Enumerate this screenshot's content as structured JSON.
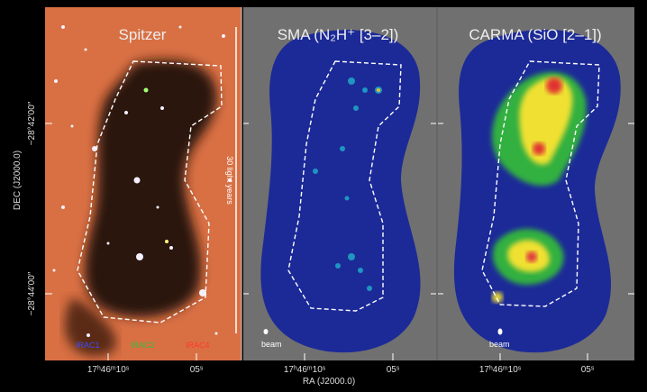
{
  "figure": {
    "panels": [
      {
        "title": "Spitzer",
        "x_ticks": [
          "17ʰ46ᵐ10ˢ",
          "05ˢ"
        ]
      },
      {
        "title": "SMA (N₂H⁺ [3–2])",
        "x_ticks": [
          "17ʰ46ᵐ10ˢ",
          "05ˢ"
        ]
      },
      {
        "title": "CARMA (SiO [2–1])",
        "x_ticks": [
          "17ʰ46ᵐ10ˢ",
          "05ˢ"
        ]
      }
    ],
    "y_axis": {
      "label": "DEC (J2000.0)",
      "ticks": [
        "−28°42′00″",
        "−28°44′00″"
      ]
    },
    "x_axis_label": "RA (J2000.0)",
    "scale_bar": "30 light years",
    "beam_labels": [
      "beam",
      "beam"
    ],
    "legend": [
      {
        "name": "IRAC1",
        "color": "#3a4cff"
      },
      {
        "name": "IRAC2",
        "color": "#2fbf3a"
      },
      {
        "name": "IRAC4",
        "color": "#ff3a2a"
      }
    ]
  }
}
